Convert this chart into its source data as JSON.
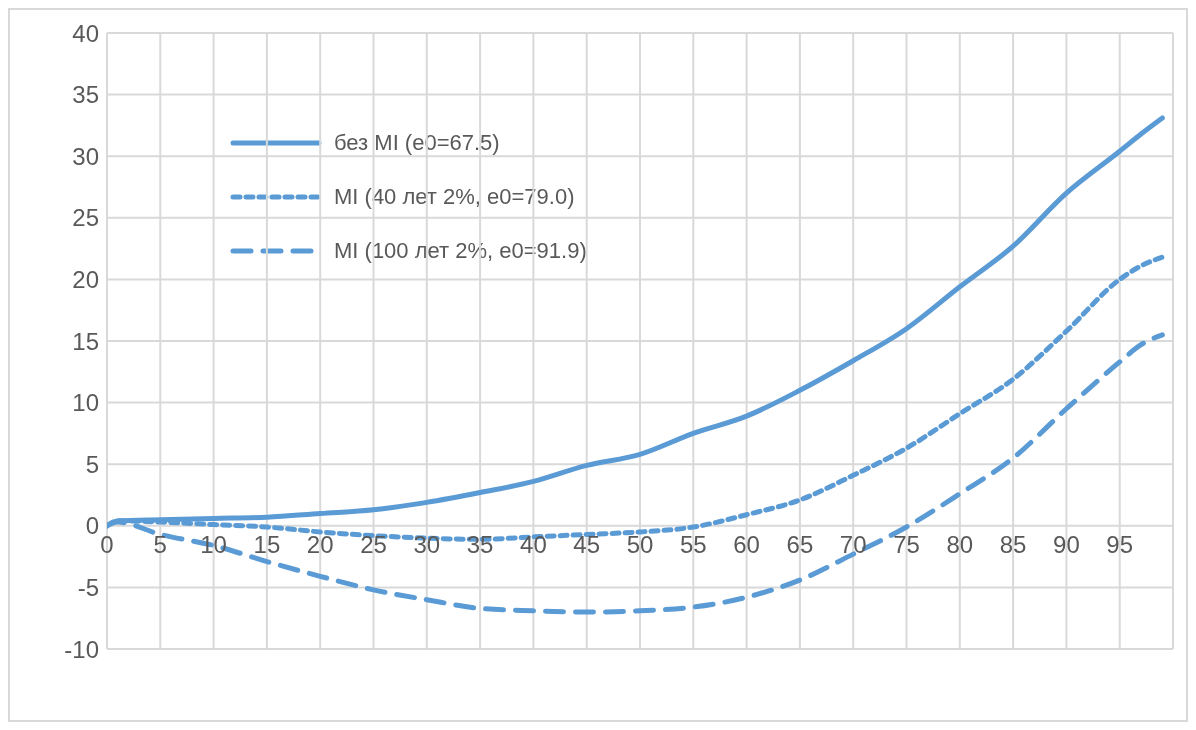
{
  "chart_data": {
    "type": "line",
    "x": [
      0,
      1,
      5,
      10,
      15,
      20,
      25,
      30,
      35,
      40,
      45,
      50,
      55,
      60,
      65,
      70,
      75,
      80,
      85,
      90,
      95,
      97,
      99
    ],
    "series": [
      {
        "name": "без MI (e0=67.5)",
        "color": "#5b9bd5",
        "line_style": "solid",
        "values": [
          0,
          0.4,
          0.5,
          0.6,
          0.7,
          1.0,
          1.3,
          1.9,
          2.7,
          3.6,
          4.9,
          5.8,
          7.5,
          8.9,
          11.0,
          13.4,
          16.0,
          19.4,
          22.7,
          27.0,
          30.4,
          31.8,
          33.1
        ]
      },
      {
        "name": "MI (40 лет 2%, e0=79.0)",
        "color": "#5b9bd5",
        "line_style": "dotted",
        "values": [
          0,
          0.4,
          0.3,
          0.1,
          -0.1,
          -0.5,
          -0.8,
          -1.0,
          -1.1,
          -0.9,
          -0.7,
          -0.5,
          -0.1,
          0.9,
          2.1,
          4.1,
          6.3,
          9.1,
          11.9,
          15.8,
          20.0,
          21.1,
          21.8
        ]
      },
      {
        "name": "MI (100 лет 2%, e0=91.9)",
        "color": "#5b9bd5",
        "line_style": "dashed",
        "values": [
          0,
          0.3,
          -0.7,
          -1.6,
          -2.9,
          -4.1,
          -5.2,
          -6.0,
          -6.7,
          -6.9,
          -7.0,
          -6.9,
          -6.6,
          -5.8,
          -4.4,
          -2.3,
          -0.1,
          2.6,
          5.5,
          9.5,
          13.3,
          14.7,
          15.5
        ]
      }
    ],
    "xlim": [
      0,
      100
    ],
    "xticks": [
      0,
      5,
      10,
      15,
      20,
      25,
      30,
      35,
      40,
      45,
      50,
      55,
      60,
      65,
      70,
      75,
      80,
      85,
      90,
      95,
      {
        "value": 100,
        "label": null
      }
    ],
    "ylim": [
      -10,
      40
    ],
    "yticks": [
      -10,
      -5,
      0,
      5,
      10,
      15,
      20,
      25,
      30,
      35,
      40
    ],
    "grid": true,
    "legend": "top left"
  }
}
